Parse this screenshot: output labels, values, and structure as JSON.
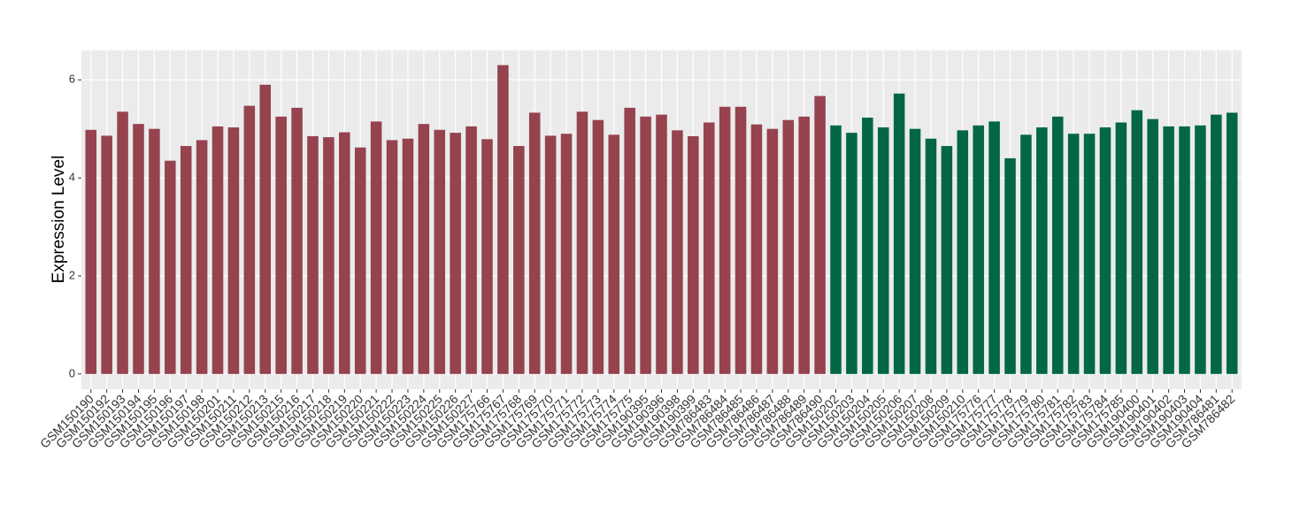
{
  "chart_data": {
    "type": "bar",
    "y_label": "Expression Level",
    "categories": [
      "GSM150190",
      "GSM150192",
      "GSM150193",
      "GSM150194",
      "GSM150195",
      "GSM150196",
      "GSM150197",
      "GSM150198",
      "GSM150201",
      "GSM150211",
      "GSM150212",
      "GSM150213",
      "GSM150215",
      "GSM150216",
      "GSM150217",
      "GSM150218",
      "GSM150219",
      "GSM150220",
      "GSM150221",
      "GSM150222",
      "GSM150223",
      "GSM150224",
      "GSM150225",
      "GSM150226",
      "GSM150227",
      "GSM175766",
      "GSM175767",
      "GSM175768",
      "GSM175769",
      "GSM175770",
      "GSM175771",
      "GSM175772",
      "GSM175773",
      "GSM175774",
      "GSM175775",
      "GSM190395",
      "GSM190396",
      "GSM190398",
      "GSM190399",
      "GSM786483",
      "GSM786484",
      "GSM786485",
      "GSM786486",
      "GSM786487",
      "GSM786488",
      "GSM786489",
      "GSM786490",
      "GSM150202",
      "GSM150203",
      "GSM150204",
      "GSM150205",
      "GSM150206",
      "GSM150207",
      "GSM150208",
      "GSM150209",
      "GSM150210",
      "GSM175776",
      "GSM175777",
      "GSM175778",
      "GSM175779",
      "GSM175780",
      "GSM175781",
      "GSM175782",
      "GSM175783",
      "GSM175784",
      "GSM175785",
      "GSM190400",
      "GSM190401",
      "GSM190402",
      "GSM190403",
      "GSM190404",
      "GSM786481",
      "GSM786482"
    ],
    "values": [
      4.98,
      4.86,
      5.35,
      5.1,
      5.0,
      4.35,
      4.65,
      4.77,
      5.05,
      5.03,
      5.47,
      5.9,
      5.25,
      5.43,
      4.85,
      4.83,
      4.93,
      4.62,
      5.15,
      4.77,
      4.8,
      5.1,
      4.98,
      4.92,
      5.05,
      4.79,
      6.3,
      4.65,
      5.33,
      4.86,
      4.9,
      5.35,
      5.18,
      4.88,
      5.43,
      5.25,
      5.29,
      4.97,
      4.85,
      5.13,
      5.45,
      5.45,
      5.09,
      5.0,
      5.18,
      5.25,
      5.67,
      5.07,
      4.92,
      5.23,
      5.03,
      5.72,
      5.0,
      4.8,
      4.65,
      4.97,
      5.07,
      5.15,
      4.4,
      4.88,
      5.03,
      5.25,
      4.9,
      4.9,
      5.03,
      5.13,
      5.38,
      5.2,
      5.05,
      5.05,
      5.07,
      5.29,
      5.33
    ],
    "colors": [
      "#96424f",
      "#96424f",
      "#96424f",
      "#96424f",
      "#96424f",
      "#96424f",
      "#96424f",
      "#96424f",
      "#96424f",
      "#96424f",
      "#96424f",
      "#96424f",
      "#96424f",
      "#96424f",
      "#96424f",
      "#96424f",
      "#96424f",
      "#96424f",
      "#96424f",
      "#96424f",
      "#96424f",
      "#96424f",
      "#96424f",
      "#96424f",
      "#96424f",
      "#96424f",
      "#96424f",
      "#96424f",
      "#96424f",
      "#96424f",
      "#96424f",
      "#96424f",
      "#96424f",
      "#96424f",
      "#96424f",
      "#96424f",
      "#96424f",
      "#96424f",
      "#96424f",
      "#96424f",
      "#96424f",
      "#96424f",
      "#96424f",
      "#96424f",
      "#96424f",
      "#96424f",
      "#96424f",
      "#036745",
      "#036745",
      "#036745",
      "#036745",
      "#036745",
      "#036745",
      "#036745",
      "#036745",
      "#036745",
      "#036745",
      "#036745",
      "#036745",
      "#036745",
      "#036745",
      "#036745",
      "#036745",
      "#036745",
      "#036745",
      "#036745",
      "#036745",
      "#036745",
      "#036745",
      "#036745",
      "#036745",
      "#036745",
      "#036745"
    ],
    "ylim": [
      -0.31,
      6.6
    ],
    "yticks": [
      0,
      2,
      4,
      6
    ],
    "grid": true
  }
}
